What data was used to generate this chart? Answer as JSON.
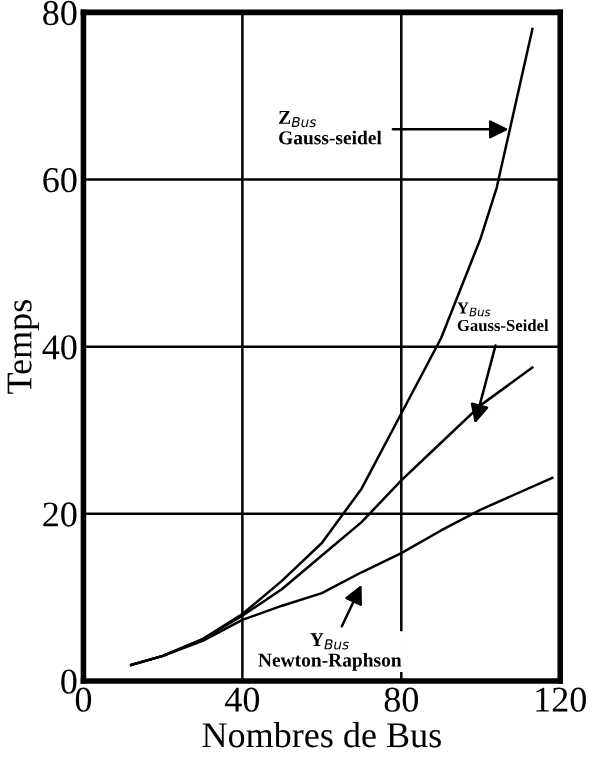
{
  "chart_data": {
    "type": "line",
    "xlabel": "Nombres de Bus",
    "ylabel": "Temps",
    "series": [
      {
        "color": "#000000",
        "x": [
          12,
          20,
          30,
          40,
          50,
          60,
          70,
          80,
          90,
          100,
          104,
          113
        ],
        "values": [
          1.9,
          3,
          5,
          8,
          12,
          16.5,
          23,
          32,
          41,
          53,
          59,
          78
        ]
      },
      {
        "color": "#000000",
        "x": [
          12,
          20,
          30,
          40,
          50,
          60,
          70,
          80,
          90,
          100,
          113
        ],
        "values": [
          1.9,
          3,
          5,
          7.8,
          11,
          15,
          19,
          24,
          28.5,
          33,
          37.5
        ]
      },
      {
        "color": "#000000",
        "x": [
          12,
          20,
          30,
          40,
          50,
          60,
          70,
          80,
          90,
          100,
          118
        ],
        "values": [
          1.9,
          3,
          4.8,
          7.3,
          9,
          10.5,
          13,
          15.3,
          18,
          20.5,
          24.3
        ]
      }
    ],
    "annotations": [
      {
        "text": "Z$_{Bus}$\nGauss-seidel",
        "x": 107,
        "y": 66
      },
      {
        "text": "Y$_{Bus}$\nGauss-Seidel",
        "x": 98.5,
        "y": 30.8
      },
      {
        "text": "Y$_{Bus}$\nNewton-Raphson",
        "x": 70,
        "y": 11.5
      }
    ],
    "xlim": [
      0,
      120
    ],
    "xticks": [
      0,
      40,
      80,
      120
    ],
    "ylim": [
      0,
      80
    ],
    "yticks": [
      0,
      20,
      40,
      60,
      80
    ],
    "grid": true,
    "line_style": "solid",
    "marker": "none"
  }
}
